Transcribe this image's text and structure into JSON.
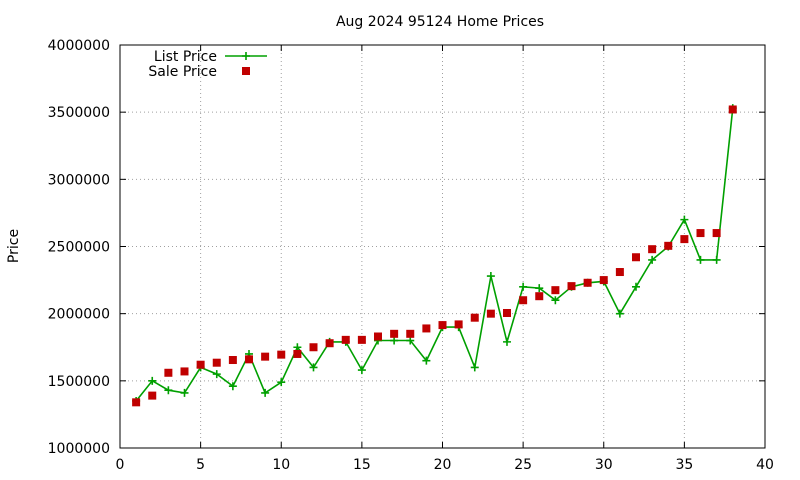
{
  "chart_data": {
    "type": "line",
    "title": "Aug 2024 95124 Home Prices",
    "xlabel": "",
    "ylabel": "Price",
    "xlim": [
      0,
      40
    ],
    "ylim": [
      1000000,
      4000000
    ],
    "x_ticks": [
      0,
      5,
      10,
      15,
      20,
      25,
      30,
      35,
      40
    ],
    "y_ticks": [
      1000000,
      1500000,
      2000000,
      2500000,
      3000000,
      3500000,
      4000000
    ],
    "grid": true,
    "legend_position": "top-left",
    "series": [
      {
        "name": "List Price",
        "style": "line-plus",
        "color": "#00a000",
        "x": [
          1,
          2,
          3,
          4,
          5,
          6,
          7,
          8,
          9,
          10,
          11,
          12,
          13,
          14,
          15,
          16,
          17,
          18,
          19,
          20,
          21,
          22,
          23,
          24,
          25,
          26,
          27,
          28,
          29,
          30,
          31,
          32,
          33,
          34,
          35,
          36,
          37,
          38
        ],
        "y": [
          1350000,
          1500000,
          1430000,
          1410000,
          1600000,
          1550000,
          1460000,
          1700000,
          1410000,
          1490000,
          1750000,
          1600000,
          1790000,
          1790000,
          1580000,
          1800000,
          1800000,
          1800000,
          1650000,
          1900000,
          1900000,
          1600000,
          2280000,
          1790000,
          2200000,
          2190000,
          2100000,
          2200000,
          2230000,
          2240000,
          2000000,
          2200000,
          2400000,
          2500000,
          2700000,
          2400000,
          2400000,
          3530000
        ]
      },
      {
        "name": "Sale Price",
        "style": "square-markers",
        "color": "#c00000",
        "x": [
          1,
          2,
          3,
          4,
          5,
          6,
          7,
          8,
          9,
          10,
          11,
          12,
          13,
          14,
          15,
          16,
          17,
          18,
          19,
          20,
          21,
          22,
          23,
          24,
          25,
          26,
          27,
          28,
          29,
          30,
          31,
          32,
          33,
          34,
          35,
          36,
          37,
          38
        ],
        "y": [
          1340000,
          1390000,
          1560000,
          1570000,
          1620000,
          1635000,
          1655000,
          1660000,
          1680000,
          1695000,
          1700000,
          1750000,
          1780000,
          1805000,
          1805000,
          1830000,
          1850000,
          1850000,
          1890000,
          1915000,
          1920000,
          1970000,
          2000000,
          2005000,
          2100000,
          2130000,
          2175000,
          2205000,
          2230000,
          2250000,
          2310000,
          2420000,
          2480000,
          2505000,
          2555000,
          2600000,
          2600000,
          3520000
        ]
      }
    ]
  }
}
